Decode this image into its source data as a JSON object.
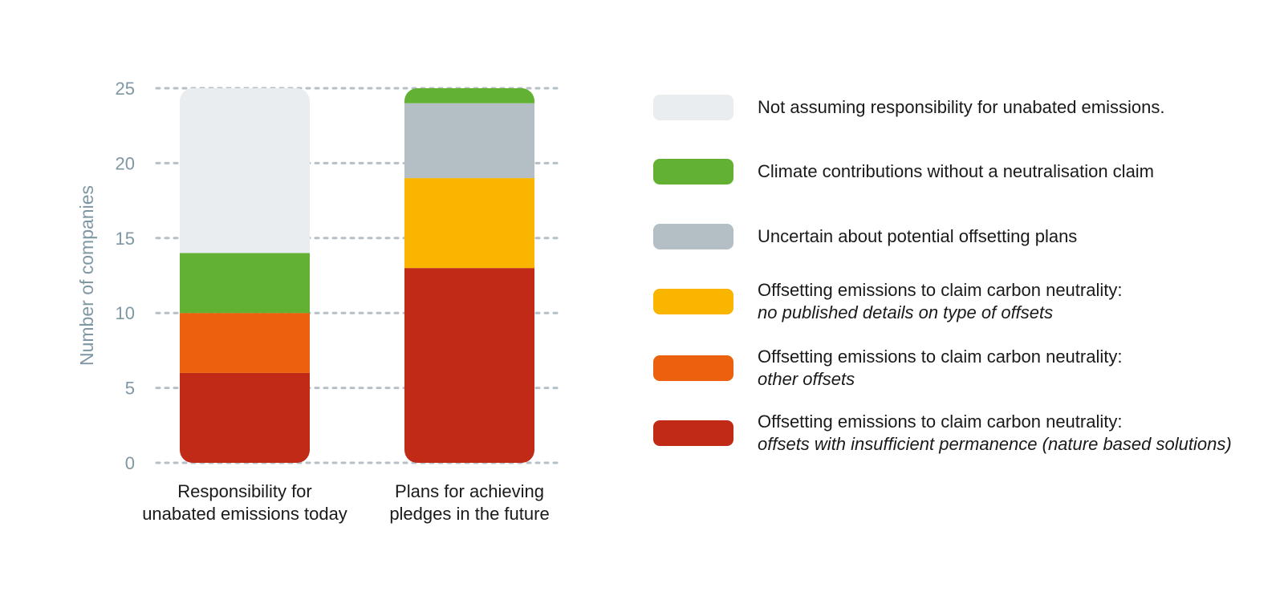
{
  "chart_data": {
    "type": "bar",
    "stacked": true,
    "ylabel": "Number of companies",
    "ylim": [
      0,
      25
    ],
    "yticks": [
      0,
      5,
      10,
      15,
      20,
      25
    ],
    "grid": true,
    "legend_placement": "right",
    "categories": [
      "Responsibility for\nunabated emissions today",
      "Plans for achieving\npledges in the future"
    ],
    "series": [
      {
        "key": "permanence",
        "name": "Offsetting emissions to claim carbon neutrality:",
        "sub": "offsets with insufficient permanence (nature based solutions)",
        "color": "#c22a18",
        "values": [
          6,
          13
        ]
      },
      {
        "key": "other",
        "name": "Offsetting emissions to claim carbon neutrality:",
        "sub": "other offsets",
        "color": "#eb610e",
        "values": [
          4,
          0
        ]
      },
      {
        "key": "nodetails",
        "name": "Offsetting emissions to claim carbon neutrality:",
        "sub": "no published details on type of offsets",
        "color": "#f9b500",
        "values": [
          0,
          6
        ]
      },
      {
        "key": "uncertain",
        "name": "Uncertain about potential offsetting plans",
        "sub": "",
        "color": "#b3bfc4",
        "values": [
          0,
          5
        ]
      },
      {
        "key": "climate",
        "name": "Climate contributions without a neutralisation claim",
        "sub": "",
        "color": "#62b133",
        "values": [
          4,
          1
        ]
      },
      {
        "key": "notassuming",
        "name": "Not assuming responsibility for unabated emissions.",
        "sub": "",
        "color": "#e9edf0",
        "values": [
          11,
          0
        ]
      }
    ],
    "legend_order": [
      "notassuming",
      "climate",
      "uncertain",
      "nodetails",
      "other",
      "permanence"
    ]
  }
}
